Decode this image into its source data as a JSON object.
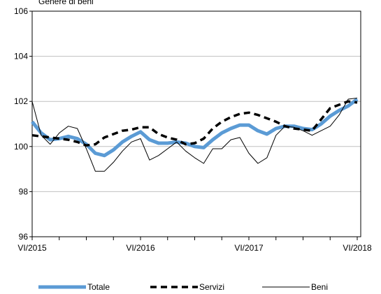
{
  "chart_data": {
    "type": "line",
    "title": "Genere di beni",
    "categories": [
      "VI/2015",
      null,
      null,
      null,
      null,
      null,
      null,
      null,
      null,
      null,
      null,
      null,
      "VI/2016",
      null,
      null,
      null,
      null,
      null,
      null,
      null,
      null,
      null,
      null,
      null,
      "VI/2017",
      null,
      null,
      null,
      null,
      null,
      null,
      null,
      null,
      null,
      null,
      null,
      "VI/2018"
    ],
    "ylim": [
      96,
      106
    ],
    "yticks": [
      96,
      98,
      100,
      102,
      104,
      106
    ],
    "grid": true,
    "legend": "bottom",
    "series": [
      {
        "name": "Totale",
        "color": "#5b9bd5",
        "values": [
          101.1,
          100.6,
          100.3,
          100.35,
          100.45,
          100.35,
          100.1,
          99.7,
          99.6,
          99.85,
          100.2,
          100.45,
          100.65,
          100.3,
          100.15,
          100.15,
          100.2,
          100.15,
          100.0,
          99.95,
          100.3,
          100.6,
          100.8,
          100.95,
          100.95,
          100.7,
          100.55,
          100.8,
          100.9,
          100.9,
          100.8,
          100.75,
          101.0,
          101.35,
          101.6,
          101.8,
          102.1
        ]
      },
      {
        "name": "Servizi",
        "color": "#000000",
        "values": [
          100.5,
          100.45,
          100.4,
          100.35,
          100.3,
          100.2,
          100.05,
          100.1,
          100.4,
          100.55,
          100.7,
          100.75,
          100.85,
          100.85,
          100.55,
          100.4,
          100.3,
          100.1,
          100.15,
          100.35,
          100.8,
          101.1,
          101.3,
          101.45,
          101.5,
          101.4,
          101.25,
          101.1,
          100.9,
          100.8,
          100.75,
          100.7,
          101.2,
          101.7,
          101.85,
          102.0,
          101.95
        ]
      },
      {
        "name": "Beni",
        "color": "#000000",
        "values": [
          102.0,
          100.5,
          100.1,
          100.6,
          100.9,
          100.8,
          99.9,
          98.9,
          98.9,
          99.3,
          99.8,
          100.2,
          100.35,
          99.4,
          99.6,
          99.9,
          100.2,
          99.8,
          99.5,
          99.25,
          99.9,
          99.9,
          100.3,
          100.4,
          99.7,
          99.25,
          99.5,
          100.5,
          100.9,
          100.85,
          100.7,
          100.5,
          100.7,
          100.9,
          101.4,
          102.1,
          102.15
        ]
      }
    ]
  }
}
